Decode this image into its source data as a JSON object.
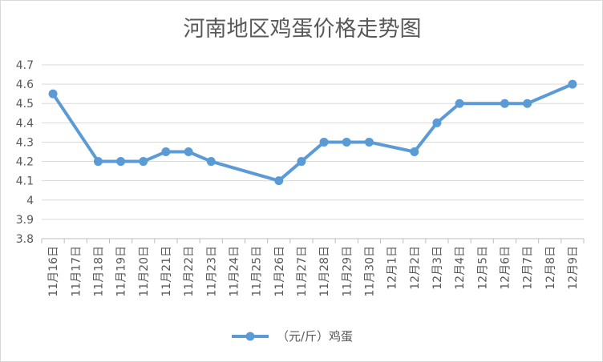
{
  "chart_data": {
    "type": "line",
    "title": "河南地区鸡蛋价格走势图",
    "categories": [
      "11月16日",
      "11月17日",
      "11月18日",
      "11月19日",
      "11月20日",
      "11月21日",
      "11月22日",
      "11月23日",
      "11月24日",
      "11月25日",
      "11月26日",
      "11月27日",
      "11月28日",
      "11月29日",
      "11月30日",
      "12月1日",
      "12月2日",
      "12月3日",
      "12月4日",
      "12月5日",
      "12月6日",
      "12月7日",
      "12月8日",
      "12月9日"
    ],
    "series": [
      {
        "name": "（元/斤）鸡蛋",
        "color": "#5b9bd5",
        "values": [
          4.55,
          null,
          4.2,
          4.2,
          4.2,
          4.25,
          4.25,
          4.2,
          null,
          null,
          4.1,
          4.2,
          4.3,
          4.3,
          4.3,
          null,
          4.25,
          4.4,
          4.5,
          null,
          4.5,
          4.5,
          null,
          4.6
        ]
      }
    ],
    "ylim": [
      3.8,
      4.7
    ],
    "yticks": [
      "3.8",
      "3.9",
      "4",
      "4.1",
      "4.2",
      "4.3",
      "4.4",
      "4.5",
      "4.6",
      "4.7"
    ],
    "grid": true,
    "legend": "bottom"
  }
}
